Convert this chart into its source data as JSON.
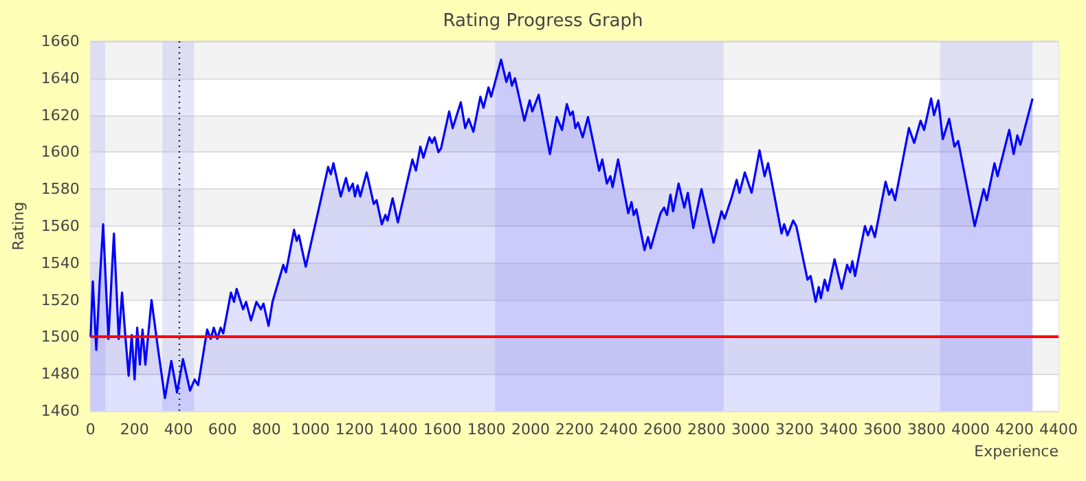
{
  "chart_data": {
    "type": "area",
    "title": "Rating Progress Graph",
    "xlabel": "Experience",
    "ylabel": "Rating",
    "series": [
      {
        "color": "#0000ff",
        "x": [
          0,
          10,
          26,
          41,
          57,
          81,
          106,
          128,
          143,
          159,
          173,
          187,
          200,
          212,
          224,
          236,
          249,
          277,
          306,
          338,
          367,
          393,
          420,
          452,
          473,
          489,
          530,
          546,
          560,
          576,
          591,
          603,
          638,
          652,
          664,
          693,
          707,
          729,
          754,
          774,
          786,
          809,
          827,
          876,
          888,
          925,
          937,
          947,
          978,
          1031,
          1080,
          1092,
          1104,
          1137,
          1161,
          1175,
          1192,
          1202,
          1214,
          1226,
          1255,
          1287,
          1300,
          1324,
          1340,
          1350,
          1373,
          1397,
          1463,
          1479,
          1499,
          1513,
          1540,
          1552,
          1564,
          1581,
          1593,
          1630,
          1646,
          1662,
          1683,
          1703,
          1719,
          1740,
          1772,
          1786,
          1809,
          1821,
          1866,
          1890,
          1904,
          1915,
          1929,
          1972,
          1996,
          2008,
          2037,
          2088,
          2119,
          2143,
          2165,
          2180,
          2192,
          2204,
          2216,
          2237,
          2261,
          2312,
          2326,
          2347,
          2363,
          2373,
          2398,
          2444,
          2459,
          2469,
          2481,
          2518,
          2534,
          2546,
          2591,
          2607,
          2620,
          2636,
          2648,
          2673,
          2699,
          2715,
          2740,
          2777,
          2832,
          2868,
          2882,
          2913,
          2937,
          2950,
          2974,
          3005,
          3041,
          3064,
          3080,
          3106,
          3141,
          3153,
          3168,
          3194,
          3208,
          3259,
          3273,
          3296,
          3310,
          3320,
          3337,
          3351,
          3382,
          3414,
          3439,
          3453,
          3463,
          3475,
          3520,
          3534,
          3549,
          3565,
          3614,
          3630,
          3642,
          3657,
          3720,
          3744,
          3773,
          3789,
          3821,
          3834,
          3854,
          3874,
          3903,
          3927,
          3944,
          4019,
          4060,
          4074,
          4109,
          4123,
          4176,
          4196,
          4213,
          4227,
          4282
        ],
        "values": [
          1500,
          1530,
          1493,
          1529,
          1561,
          1499,
          1556,
          1499,
          1524,
          1499,
          1479,
          1501,
          1477,
          1505,
          1485,
          1504,
          1485,
          1520,
          1494,
          1467,
          1487,
          1470,
          1488,
          1471,
          1477,
          1474,
          1504,
          1499,
          1505,
          1499,
          1505,
          1502,
          1524,
          1519,
          1526,
          1515,
          1519,
          1509,
          1519,
          1515,
          1518,
          1506,
          1519,
          1539,
          1535,
          1558,
          1552,
          1555,
          1538,
          1566,
          1592,
          1588,
          1594,
          1576,
          1586,
          1579,
          1583,
          1576,
          1582,
          1576,
          1589,
          1572,
          1574,
          1561,
          1566,
          1563,
          1575,
          1562,
          1596,
          1590,
          1603,
          1597,
          1608,
          1605,
          1608,
          1600,
          1602,
          1622,
          1613,
          1619,
          1627,
          1613,
          1618,
          1611,
          1630,
          1624,
          1635,
          1630,
          1650,
          1638,
          1643,
          1636,
          1640,
          1617,
          1628,
          1622,
          1631,
          1599,
          1619,
          1612,
          1626,
          1620,
          1622,
          1613,
          1616,
          1608,
          1619,
          1590,
          1596,
          1583,
          1587,
          1581,
          1596,
          1567,
          1573,
          1566,
          1569,
          1547,
          1554,
          1548,
          1567,
          1570,
          1566,
          1577,
          1568,
          1583,
          1570,
          1578,
          1559,
          1580,
          1551,
          1568,
          1564,
          1575,
          1585,
          1578,
          1589,
          1578,
          1601,
          1587,
          1594,
          1578,
          1556,
          1561,
          1555,
          1563,
          1560,
          1531,
          1533,
          1519,
          1527,
          1521,
          1531,
          1525,
          1542,
          1526,
          1539,
          1535,
          1541,
          1533,
          1560,
          1555,
          1560,
          1554,
          1584,
          1577,
          1580,
          1574,
          1613,
          1605,
          1617,
          1612,
          1629,
          1620,
          1628,
          1607,
          1618,
          1603,
          1606,
          1560,
          1580,
          1574,
          1594,
          1587,
          1612,
          1599,
          1609,
          1604,
          1629
        ]
      }
    ],
    "xlim": [
      0,
      4400
    ],
    "xticks": [
      0,
      200,
      400,
      600,
      800,
      1000,
      1200,
      1400,
      1600,
      1800,
      2000,
      2200,
      2400,
      2600,
      2800,
      3000,
      3200,
      3400,
      3600,
      3800,
      4000,
      4200,
      4400
    ],
    "ylim": [
      1460,
      1660
    ],
    "yticks": [
      1460,
      1480,
      1500,
      1520,
      1540,
      1560,
      1580,
      1600,
      1620,
      1640,
      1660
    ],
    "grid": "y",
    "marker": "none",
    "ref_lines": [
      {
        "axis": "y",
        "value": 1500,
        "color": "#ff0000",
        "line_style": "solid"
      },
      {
        "axis": "x",
        "value": 400,
        "color": "#004400",
        "line_style": "dotted"
      }
    ],
    "bands": [
      {
        "axis": "x",
        "from": 0,
        "to": 67,
        "color": "#b8b8f4"
      },
      {
        "axis": "x",
        "from": 326,
        "to": 470,
        "color": "#b8b8f4"
      },
      {
        "axis": "x",
        "from": 1839,
        "to": 2878,
        "color": "#b8b8f4"
      },
      {
        "axis": "x",
        "from": 3862,
        "to": 4282,
        "color": "#b8b8f4"
      }
    ]
  }
}
